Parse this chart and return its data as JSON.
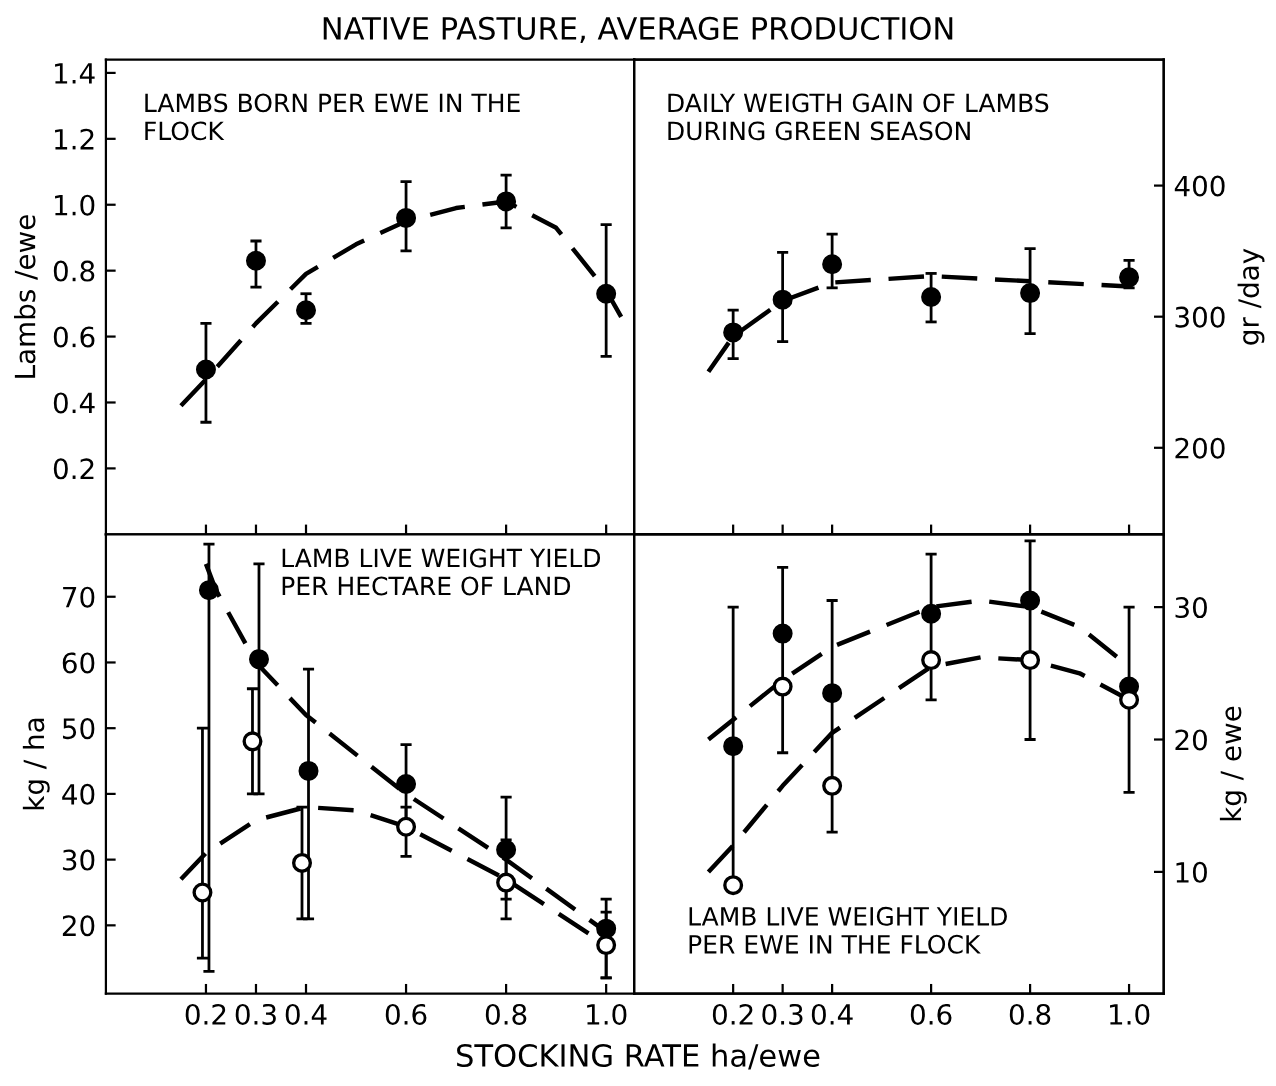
{
  "chart_data": [
    {
      "type": "scatter",
      "title": "NATIVE PASTURE, AVERAGE PRODUCTION",
      "ylabel": "Lambs /ewe",
      "annotations": [
        "LAMBS BORN PER EWE IN THE\nFLOCK"
      ],
      "xlim": [
        0.0,
        1.056
      ],
      "xticks": [
        0.2,
        0.3,
        0.4,
        0.6,
        0.8,
        1.0
      ],
      "ylim": [
        0,
        1.44
      ],
      "yticks": [
        0.2,
        0.4,
        0.6,
        0.8,
        {
          "value": 1.0,
          "label": "1.0"
        },
        1.2,
        1.4
      ],
      "tick_labels": "y",
      "grid": false,
      "legend": false,
      "series": [
        {
          "marker": "circle",
          "color": "#000000",
          "x": [
            0.2,
            0.3,
            0.4,
            0.6,
            0.8,
            1.0
          ],
          "values": [
            0.5,
            0.83,
            0.68,
            0.96,
            1.01,
            0.73
          ],
          "errors": [
            [
              0.34,
              0.64
            ],
            [
              0.75,
              0.89
            ],
            [
              0.64,
              0.73
            ],
            [
              0.86,
              1.07
            ],
            [
              0.93,
              1.09
            ],
            [
              0.54,
              0.94
            ]
          ]
        },
        {
          "type": "line",
          "line_style": "dashed",
          "color": "#000000",
          "x": [
            0.15,
            0.2,
            0.3,
            0.4,
            0.5,
            0.6,
            0.7,
            0.8,
            0.9,
            1.0,
            1.03
          ],
          "values": [
            0.39,
            0.47,
            0.64,
            0.79,
            0.88,
            0.95,
            0.99,
            1.01,
            0.93,
            0.74,
            0.66
          ]
        }
      ]
    },
    {
      "type": "scatter",
      "y2label": "gr /day",
      "annotations": [
        "DAILY WEIGTH GAIN OF LAMBS\nDURING GREEN SEASON"
      ],
      "xlim": [
        0.0,
        1.07
      ],
      "xticks": [
        0.2,
        0.3,
        0.4,
        0.6,
        0.8,
        1.0
      ],
      "y2lim": [
        134,
        496
      ],
      "y2ticks": [
        200,
        300,
        400
      ],
      "tick_labels": "y",
      "grid": false,
      "legend": false,
      "series": [
        {
          "axis": "y2",
          "marker": "circle",
          "color": "#000000",
          "x": [
            0.2,
            0.3,
            0.4,
            0.6,
            0.8,
            1.0
          ],
          "values": [
            288,
            313,
            340,
            315,
            318,
            330
          ],
          "errors": [
            [
              268,
              305
            ],
            [
              281,
              349
            ],
            [
              322,
              363
            ],
            [
              296,
              333
            ],
            [
              287,
              352
            ],
            [
              322,
              343
            ]
          ]
        },
        {
          "axis": "y2",
          "type": "line",
          "line_style": "dashed",
          "color": "#000000",
          "x": [
            0.15,
            0.2,
            0.3,
            0.4,
            0.6,
            0.8,
            1.0
          ],
          "values": [
            258,
            285,
            312,
            326,
            331,
            327,
            323
          ]
        }
      ]
    },
    {
      "type": "scatter",
      "ylabel": "kg / ha",
      "xlabel": "STOCKING RATE ha/ewe",
      "annotations": [
        "LAMB LIVE WEIGHT YIELD\nPER HECTARE OF LAND"
      ],
      "xlim": [
        0.0,
        1.056
      ],
      "xticks": [
        0.2,
        0.3,
        0.4,
        0.6,
        0.8,
        {
          "value": 1.0,
          "label": "1.0"
        }
      ],
      "ylim": [
        9.6,
        79.5
      ],
      "yticks": [
        20,
        30,
        40,
        50,
        60,
        70
      ],
      "grid": false,
      "legend": false,
      "series": [
        {
          "marker": "circle",
          "color": "#000000",
          "x": [
            0.206,
            0.306,
            0.405,
            0.6,
            0.8,
            1.0
          ],
          "values": [
            71,
            60.5,
            43.5,
            41.5,
            31.5,
            19.5
          ],
          "errors": [
            [
              13,
              78
            ],
            [
              40,
              75
            ],
            [
              21,
              59
            ],
            [
              35,
              47.5
            ],
            [
              24,
              39.5
            ],
            [
              12,
              24
            ]
          ]
        },
        {
          "marker": "circle",
          "color": "#ffffff",
          "x": [
            0.193,
            0.293,
            0.392,
            0.6,
            0.8,
            1.0
          ],
          "values": [
            25,
            48,
            29.5,
            35,
            26.5,
            17
          ],
          "errors": [
            [
              15,
              50
            ],
            [
              40,
              56
            ],
            [
              21,
              38
            ],
            [
              30.5,
              38
            ],
            [
              21,
              33
            ],
            [
              12,
              22
            ]
          ]
        },
        {
          "type": "line",
          "line_style": "dashed",
          "color": "#000000",
          "x": [
            0.2,
            0.22,
            0.3,
            0.4,
            0.6,
            0.8,
            1.0
          ],
          "values": [
            75,
            71,
            60,
            52,
            40,
            30,
            19
          ]
        },
        {
          "type": "line",
          "line_style": "dashed",
          "color": "#000000",
          "x": [
            0.15,
            0.2,
            0.3,
            0.4,
            0.5,
            0.6,
            0.8,
            1.0
          ],
          "values": [
            27,
            31,
            36,
            38,
            37.5,
            35,
            27,
            17
          ]
        }
      ]
    },
    {
      "type": "scatter",
      "y2label": "kg / ewe",
      "annotations": [
        "LAMB LIVE WEIGHT YIELD\nPER EWE IN THE FLOCK"
      ],
      "xlim": [
        0.0,
        1.07
      ],
      "xticks": [
        0.2,
        0.3,
        0.4,
        0.6,
        0.8,
        {
          "value": 1.0,
          "label": "1.0"
        }
      ],
      "y2lim": [
        0.8,
        35.5
      ],
      "y2ticks": [
        10,
        20,
        30
      ],
      "grid": false,
      "legend": false,
      "series": [
        {
          "axis": "y2",
          "marker": "circle",
          "color": "#000000",
          "x": [
            0.2,
            0.3,
            0.4,
            0.6,
            0.8,
            1.0
          ],
          "values": [
            19.5,
            28,
            23.5,
            29.5,
            30.5,
            24
          ],
          "errors": [
            [
              9,
              30
            ],
            [
              19,
              33
            ],
            [
              13,
              30.5
            ],
            [
              23,
              34
            ],
            [
              20,
              35
            ],
            [
              16,
              30
            ]
          ]
        },
        {
          "axis": "y2",
          "marker": "circle",
          "color": "#ffffff",
          "x": [
            0.2,
            0.3,
            0.4,
            0.6,
            0.8,
            1.0
          ],
          "values": [
            9,
            24,
            16.5,
            26,
            26,
            23
          ]
        },
        {
          "axis": "y2",
          "type": "line",
          "line_style": "dashed",
          "color": "#000000",
          "x": [
            0.15,
            0.2,
            0.3,
            0.4,
            0.6,
            0.7,
            0.8,
            0.9,
            1.0
          ],
          "values": [
            20,
            21.5,
            24.5,
            27,
            30,
            30.5,
            30,
            28.5,
            25.5
          ]
        },
        {
          "axis": "y2",
          "type": "line",
          "line_style": "dashed",
          "color": "#000000",
          "x": [
            0.15,
            0.2,
            0.3,
            0.4,
            0.6,
            0.7,
            0.8,
            0.9,
            1.0
          ],
          "values": [
            10,
            12,
            16.5,
            20.5,
            25.5,
            26.2,
            26,
            25,
            23
          ]
        }
      ]
    }
  ]
}
